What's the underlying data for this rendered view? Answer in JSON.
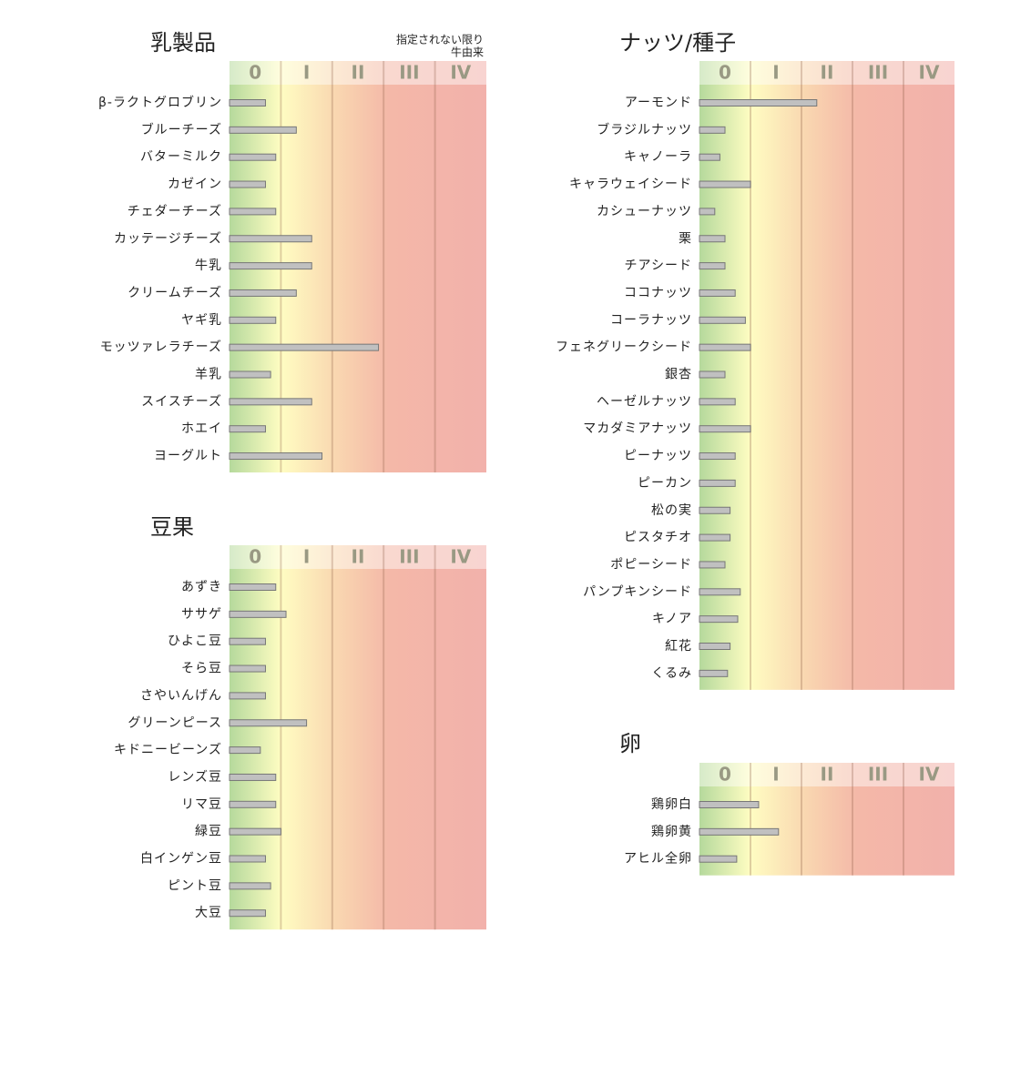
{
  "chart_data": [
    {
      "type": "bar",
      "orientation": "horizontal",
      "title": "乳製品",
      "note": [
        "指定されない限り",
        "牛由来"
      ],
      "color": "#c0c0c0",
      "categories": [
        "β-ラクトグロブリン",
        "ブルーチーズ",
        "バターミルク",
        "カゼイン",
        "チェダーチーズ",
        "カッテージチーズ",
        "牛乳",
        "クリームチーズ",
        "ヤギ乳",
        "モッツァレラチーズ",
        "羊乳",
        "スイスチーズ",
        "ホエイ",
        "ヨーグルト"
      ],
      "values": [
        0.7,
        1.3,
        0.9,
        0.7,
        0.9,
        1.6,
        1.6,
        1.3,
        0.9,
        2.9,
        0.8,
        1.6,
        0.7,
        1.8
      ],
      "xlim": [
        0,
        5
      ],
      "xticks": [
        {
          "value": 0.5,
          "label": "0"
        },
        {
          "value": 1.5,
          "label": "I"
        },
        {
          "value": 2.5,
          "label": "II"
        },
        {
          "value": 3.5,
          "label": "III"
        },
        {
          "value": 4.5,
          "label": "IV"
        }
      ]
    },
    {
      "type": "bar",
      "orientation": "horizontal",
      "title": "豆果",
      "color": "#c0c0c0",
      "categories": [
        "あずき",
        "ササゲ",
        "ひよこ豆",
        "そら豆",
        "さやいんげん",
        "グリーンピース",
        "キドニービーンズ",
        "レンズ豆",
        "リマ豆",
        "緑豆",
        "白インゲン豆",
        "ピント豆",
        "大豆"
      ],
      "values": [
        0.9,
        1.1,
        0.7,
        0.7,
        0.7,
        1.5,
        0.6,
        0.9,
        0.9,
        1.0,
        0.7,
        0.8,
        0.7
      ],
      "xlim": [
        0,
        5
      ],
      "xticks": [
        {
          "value": 0.5,
          "label": "0"
        },
        {
          "value": 1.5,
          "label": "I"
        },
        {
          "value": 2.5,
          "label": "II"
        },
        {
          "value": 3.5,
          "label": "III"
        },
        {
          "value": 4.5,
          "label": "IV"
        }
      ]
    },
    {
      "type": "bar",
      "orientation": "horizontal",
      "title": "ナッツ/種子",
      "color": "#c0c0c0",
      "categories": [
        "アーモンド",
        "ブラジルナッツ",
        "キャノーラ",
        "キャラウェイシード",
        "カシューナッツ",
        "栗",
        "チアシード",
        "ココナッツ",
        "コーラナッツ",
        "フェネグリークシード",
        "銀杏",
        "ヘーゼルナッツ",
        "マカダミアナッツ",
        "ピーナッツ",
        "ピーカン",
        "松の実",
        "ピスタチオ",
        "ポピーシード",
        "パンプキンシード",
        "キノア",
        "紅花",
        "くるみ"
      ],
      "values": [
        2.3,
        0.5,
        0.4,
        1.0,
        0.3,
        0.5,
        0.5,
        0.7,
        0.9,
        1.0,
        0.5,
        0.7,
        1.0,
        0.7,
        0.7,
        0.6,
        0.6,
        0.5,
        0.8,
        0.75,
        0.6,
        0.55
      ],
      "xlim": [
        0,
        5
      ],
      "xticks": [
        {
          "value": 0.5,
          "label": "0"
        },
        {
          "value": 1.5,
          "label": "I"
        },
        {
          "value": 2.5,
          "label": "II"
        },
        {
          "value": 3.5,
          "label": "III"
        },
        {
          "value": 4.5,
          "label": "IV"
        }
      ]
    },
    {
      "type": "bar",
      "orientation": "horizontal",
      "title": "卵",
      "color": "#c0c0c0",
      "categories": [
        "鶏卵白",
        "鶏卵黄",
        "アヒル全卵"
      ],
      "values": [
        1.16,
        1.55,
        0.73
      ],
      "xlim": [
        0,
        5
      ],
      "xticks": [
        {
          "value": 0.5,
          "label": "0"
        },
        {
          "value": 1.5,
          "label": "I"
        },
        {
          "value": 2.5,
          "label": "II"
        },
        {
          "value": 3.5,
          "label": "III"
        },
        {
          "value": 4.5,
          "label": "IV"
        }
      ]
    }
  ]
}
